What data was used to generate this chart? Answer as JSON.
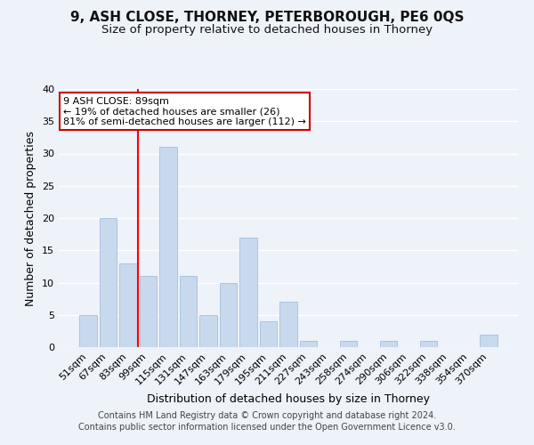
{
  "title": "9, ASH CLOSE, THORNEY, PETERBOROUGH, PE6 0QS",
  "subtitle": "Size of property relative to detached houses in Thorney",
  "xlabel": "Distribution of detached houses by size in Thorney",
  "ylabel": "Number of detached properties",
  "bar_labels": [
    "51sqm",
    "67sqm",
    "83sqm",
    "99sqm",
    "115sqm",
    "131sqm",
    "147sqm",
    "163sqm",
    "179sqm",
    "195sqm",
    "211sqm",
    "227sqm",
    "243sqm",
    "258sqm",
    "274sqm",
    "290sqm",
    "306sqm",
    "322sqm",
    "338sqm",
    "354sqm",
    "370sqm"
  ],
  "bar_values": [
    5,
    20,
    13,
    11,
    31,
    11,
    5,
    10,
    17,
    4,
    7,
    1,
    0,
    1,
    0,
    1,
    0,
    1,
    0,
    0,
    2
  ],
  "bar_color": "#c8d9ee",
  "bar_edge_color": "#aac4e0",
  "vline_x": 2,
  "vline_color": "red",
  "ylim": [
    0,
    40
  ],
  "yticks": [
    0,
    5,
    10,
    15,
    20,
    25,
    30,
    35,
    40
  ],
  "annotation_title": "9 ASH CLOSE: 89sqm",
  "annotation_line1": "← 19% of detached houses are smaller (26)",
  "annotation_line2": "81% of semi-detached houses are larger (112) →",
  "annotation_box_color": "#ffffff",
  "annotation_box_edge": "#cc0000",
  "footer1": "Contains HM Land Registry data © Crown copyright and database right 2024.",
  "footer2": "Contains public sector information licensed under the Open Government Licence v3.0.",
  "background_color": "#eef2f9",
  "grid_color": "#ffffff",
  "title_fontsize": 11,
  "subtitle_fontsize": 9.5,
  "axis_label_fontsize": 9,
  "tick_fontsize": 8,
  "footer_fontsize": 7
}
